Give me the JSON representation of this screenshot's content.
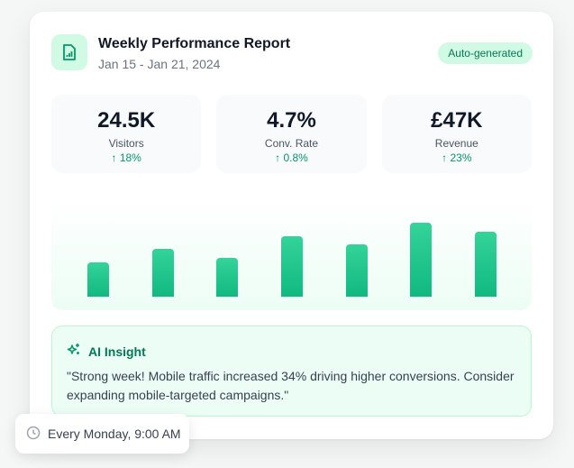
{
  "header": {
    "title": "Weekly Performance Report",
    "date_range": "Jan 15 - Jan 21, 2024",
    "badge": "Auto-generated",
    "icon": "file-chart-icon"
  },
  "stats": [
    {
      "value": "24.5K",
      "label": "Visitors",
      "delta": "↑ 18%"
    },
    {
      "value": "4.7%",
      "label": "Conv. Rate",
      "delta": "↑ 0.8%"
    },
    {
      "value": "£47K",
      "label": "Revenue",
      "delta": "↑ 23%"
    }
  ],
  "chart_data": {
    "type": "bar",
    "values": [
      46,
      65,
      52,
      82,
      71,
      100,
      88
    ],
    "ylim": [
      0,
      100
    ],
    "grid": false,
    "colors": [
      "#34d399",
      "#10b981"
    ]
  },
  "insight": {
    "title": "AI Insight",
    "icon": "sparkles-icon",
    "text": "\"Strong week! Mobile traffic increased 34% driving higher conversions. Consider expanding mobile-targeted campaigns.\""
  },
  "schedule": {
    "icon": "clock-icon",
    "label": "Every Monday, 9:00 AM"
  },
  "colors": {
    "accent": "#10b981",
    "accent_light": "#d1fae5",
    "accent_text": "#047857"
  }
}
